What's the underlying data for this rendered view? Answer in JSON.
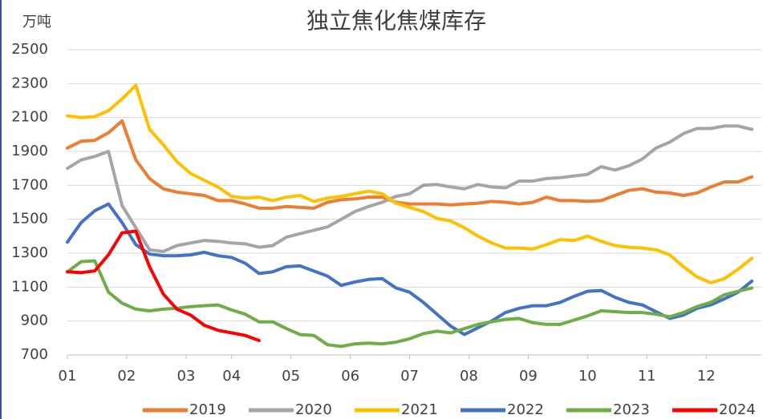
{
  "chart_data": {
    "type": "line",
    "title": "独立焦化焦煤库存",
    "y_label": "万吨",
    "x": [
      1,
      2,
      3,
      4,
      5,
      6,
      7,
      8,
      9,
      10,
      11,
      12,
      13,
      14,
      15,
      16,
      17,
      18,
      19,
      20,
      21,
      22,
      23,
      24,
      25,
      26,
      27,
      28,
      29,
      30,
      31,
      32,
      33,
      34,
      35,
      36,
      37,
      38,
      39,
      40,
      41,
      42,
      43,
      44,
      45,
      46,
      47,
      48,
      49,
      50,
      51
    ],
    "xlim": [
      1,
      51.7
    ],
    "xticks": [
      {
        "value": 1,
        "label": "01"
      },
      {
        "value": 5.33,
        "label": "02"
      },
      {
        "value": 9.67,
        "label": "03"
      },
      {
        "value": 13,
        "label": "04"
      },
      {
        "value": 17.33,
        "label": "05"
      },
      {
        "value": 21.67,
        "label": "06"
      },
      {
        "value": 26,
        "label": "07"
      },
      {
        "value": 30.33,
        "label": "08"
      },
      {
        "value": 34.67,
        "label": "09"
      },
      {
        "value": 39,
        "label": "10"
      },
      {
        "value": 43.33,
        "label": "11"
      },
      {
        "value": 47.67,
        "label": "12"
      }
    ],
    "ylim": [
      700,
      2500
    ],
    "yticks": [
      700,
      900,
      1100,
      1300,
      1500,
      1700,
      1900,
      2100,
      2300,
      2500
    ],
    "grid": true,
    "legend": "bottom",
    "series": [
      {
        "name": "2019",
        "color": "#ed7d31",
        "values": [
          1920,
          1960,
          1965,
          2010,
          2080,
          1850,
          1740,
          1680,
          1660,
          1650,
          1640,
          1610,
          1610,
          1590,
          1565,
          1565,
          1575,
          1570,
          1565,
          1600,
          1615,
          1620,
          1630,
          1630,
          1600,
          1590,
          1590,
          1590,
          1585,
          1590,
          1595,
          1605,
          1600,
          1590,
          1600,
          1630,
          1610,
          1610,
          1605,
          1610,
          1640,
          1670,
          1680,
          1660,
          1655,
          1640,
          1655,
          1690,
          1720,
          1720,
          1750
        ]
      },
      {
        "name": "2020",
        "color": "#a5a5a5",
        "values": [
          1800,
          1850,
          1870,
          1900,
          1580,
          1450,
          1320,
          1310,
          1345,
          1360,
          1375,
          1370,
          1360,
          1355,
          1335,
          1345,
          1395,
          1415,
          1435,
          1455,
          1500,
          1545,
          1575,
          1600,
          1635,
          1650,
          1700,
          1705,
          1690,
          1680,
          1705,
          1690,
          1685,
          1725,
          1725,
          1740,
          1745,
          1755,
          1765,
          1810,
          1790,
          1815,
          1855,
          1920,
          1955,
          2005,
          2035,
          2035,
          2050,
          2050,
          2030
        ]
      },
      {
        "name": "2021",
        "color": "#ffc000",
        "values": [
          2110,
          2100,
          2105,
          2140,
          2210,
          2290,
          2030,
          1940,
          1840,
          1770,
          1730,
          1690,
          1635,
          1625,
          1630,
          1610,
          1630,
          1640,
          1605,
          1625,
          1635,
          1650,
          1665,
          1650,
          1595,
          1570,
          1545,
          1505,
          1490,
          1450,
          1400,
          1360,
          1330,
          1330,
          1325,
          1350,
          1380,
          1375,
          1400,
          1370,
          1345,
          1335,
          1330,
          1320,
          1290,
          1220,
          1160,
          1125,
          1150,
          1205,
          1270
        ]
      },
      {
        "name": "2022",
        "color": "#4472c4",
        "values": [
          1365,
          1480,
          1550,
          1590,
          1480,
          1350,
          1295,
          1285,
          1285,
          1290,
          1305,
          1285,
          1275,
          1240,
          1180,
          1190,
          1220,
          1225,
          1195,
          1165,
          1110,
          1130,
          1145,
          1150,
          1095,
          1070,
          1010,
          940,
          870,
          820,
          860,
          900,
          950,
          975,
          990,
          990,
          1010,
          1045,
          1075,
          1080,
          1040,
          1010,
          995,
          955,
          915,
          935,
          975,
          995,
          1030,
          1070,
          1135
        ]
      },
      {
        "name": "2023",
        "color": "#70ad47",
        "values": [
          1190,
          1250,
          1255,
          1070,
          1005,
          970,
          960,
          970,
          975,
          985,
          990,
          995,
          965,
          940,
          895,
          895,
          855,
          820,
          815,
          760,
          750,
          765,
          770,
          765,
          775,
          795,
          825,
          840,
          830,
          855,
          880,
          895,
          910,
          915,
          890,
          880,
          880,
          905,
          930,
          960,
          955,
          950,
          950,
          940,
          925,
          950,
          985,
          1010,
          1055,
          1075,
          1095
        ]
      },
      {
        "name": "2024",
        "color": "#ff0000",
        "values": [
          1190,
          1185,
          1195,
          1290,
          1420,
          1430,
          1220,
          1060,
          970,
          935,
          875,
          845,
          830,
          815,
          785,
          null,
          null,
          null,
          null,
          null,
          null,
          null,
          null,
          null,
          null,
          null,
          null,
          null,
          null,
          null,
          null,
          null,
          null,
          null,
          null,
          null,
          null,
          null,
          null,
          null,
          null,
          null,
          null,
          null,
          null,
          null,
          null,
          null,
          null,
          null,
          null
        ]
      }
    ]
  }
}
